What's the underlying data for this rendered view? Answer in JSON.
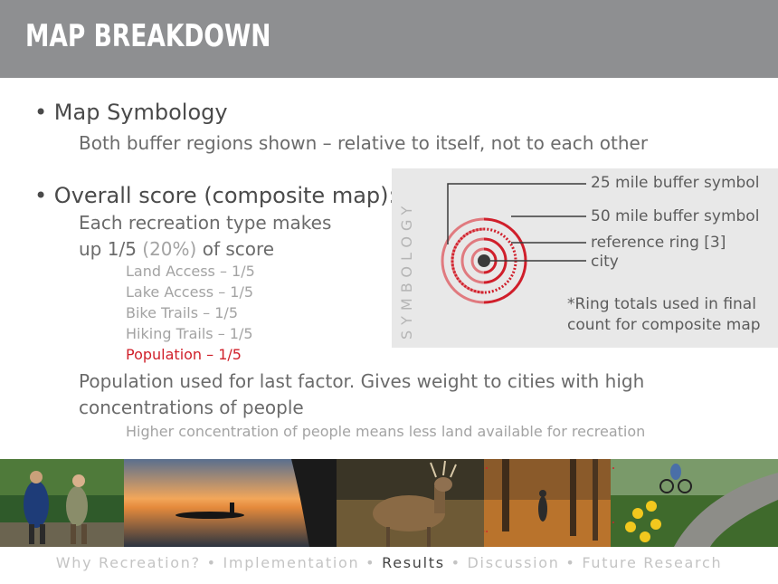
{
  "header": {
    "title": "MAP BREAKDOWN"
  },
  "bullets": {
    "symbology_heading": "Map Symbology",
    "symbology_detail": "Both buffer regions shown – relative to itself, not to each other",
    "score_heading": "Overall score (composite map):",
    "score_line1": "Each recreation type makes",
    "score_line2_a": "up 1/5",
    "score_line2_pct": "(20%)",
    "score_line2_b": "of  score",
    "factors": [
      {
        "label": "Land Access – 1/5"
      },
      {
        "label": "Lake Access – 1/5"
      },
      {
        "label": "Bike Trails – 1/5"
      },
      {
        "label": "Hiking Trails – 1/5"
      },
      {
        "label": "Population – 1/5"
      }
    ],
    "population_line1": "Population used for last factor. Gives weight to cities with high",
    "population_line2": "concentrations of  people",
    "population_detail": "Higher concentration of  people means less land available for recreation"
  },
  "symbology": {
    "vertical_label": "SYMBOLOGY",
    "legend": {
      "buffer25": "25 mile buffer symbol",
      "buffer50": "50 mile buffer symbol",
      "reference": "reference ring [3]",
      "city": "city"
    },
    "note_line1": "*Ring totals used in final",
    "note_line2": "count for composite map",
    "colors": {
      "light_ring": "#e07a7f",
      "dark_ring": "#d01f2b",
      "city": "#3a3a3a",
      "panel": "#e8e8e8"
    }
  },
  "photos": [
    {
      "name": "hikers-photo"
    },
    {
      "name": "kayak-sunset-photo"
    },
    {
      "name": "deer-photo"
    },
    {
      "name": "autumn-trail-photo"
    },
    {
      "name": "cyclist-photo"
    }
  ],
  "footer": {
    "items": [
      "Why Recreation?",
      "Implementation",
      "Results",
      "Discussion",
      "Future Research"
    ],
    "active": "Results",
    "separator": "•"
  },
  "accent_colors": {
    "header_bg": "#8e8f91",
    "highlight_red": "#d0202a"
  }
}
